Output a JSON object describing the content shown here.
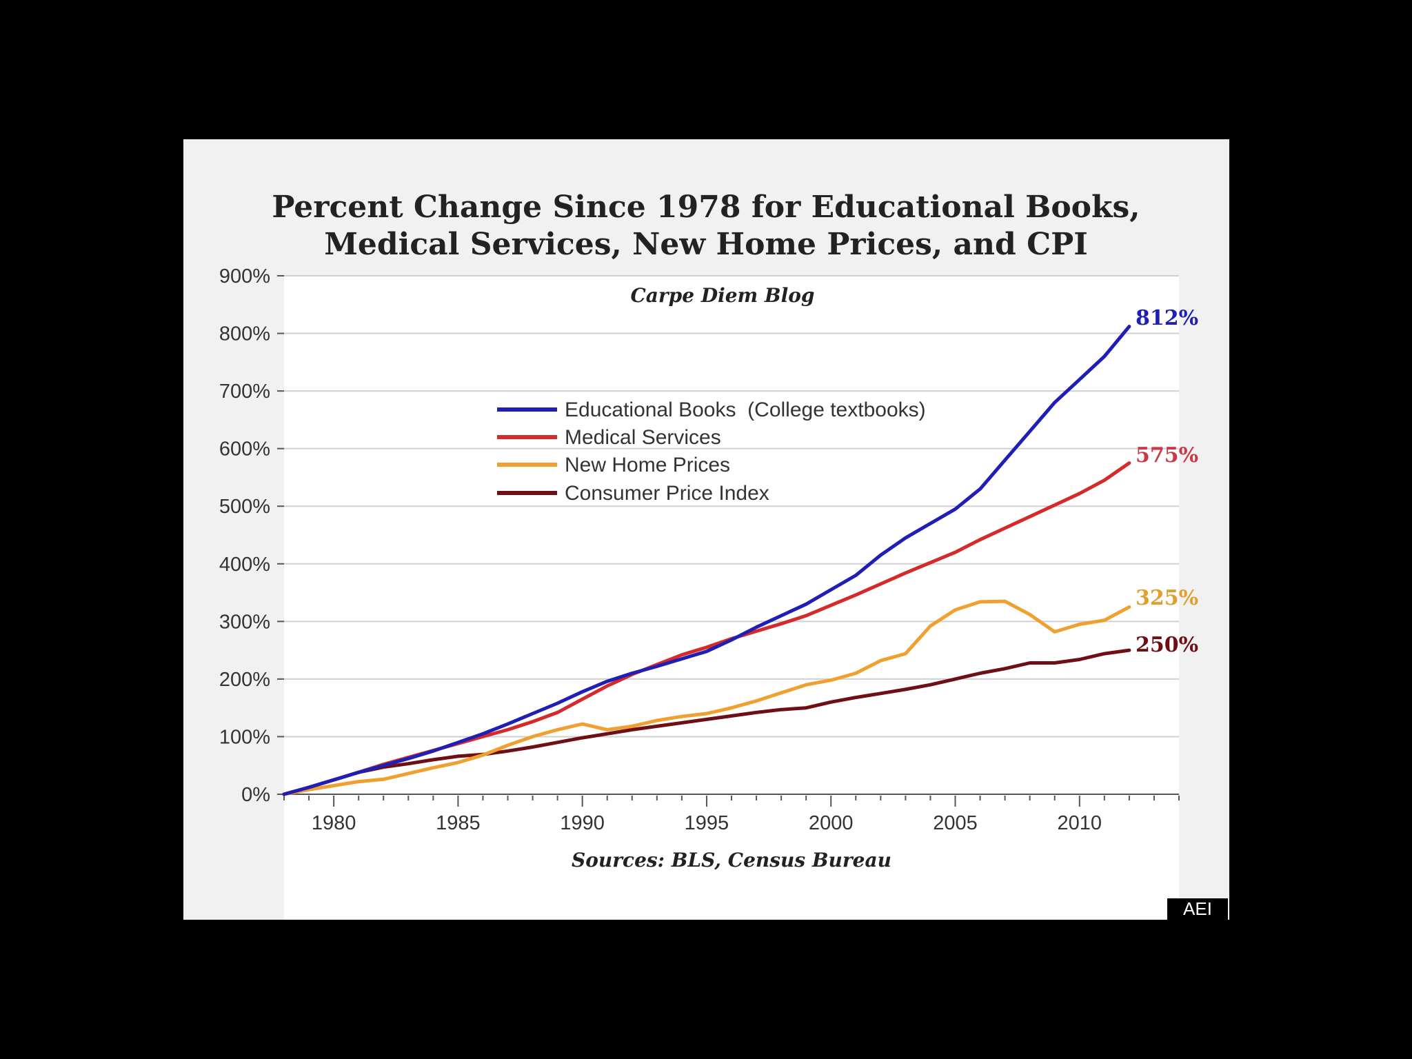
{
  "chart_data": {
    "type": "line",
    "title_lines": [
      "Percent Change Since 1978 for Educational Books,",
      "Medical Services, New Home Prices, and CPI"
    ],
    "subtitle": "Carpe Diem Blog",
    "source": "Sources: BLS, Census Bureau",
    "badge": "AEI",
    "xlim": [
      1978,
      2014
    ],
    "ylim": [
      0,
      900
    ],
    "x_ticks": [
      "1980",
      "1985",
      "1990",
      "1995",
      "2000",
      "2005",
      "2010"
    ],
    "y_ticks": [
      "0%",
      "100%",
      "200%",
      "300%",
      "400%",
      "500%",
      "600%",
      "700%",
      "800%",
      "900%"
    ],
    "grid": true,
    "legend_position": "upper-center",
    "series": [
      {
        "name": "Educational Books  (College textbooks)",
        "color": "#1f1fb5",
        "end_label": "812%",
        "x": [
          1978,
          1979,
          1980,
          1981,
          1982,
          1983,
          1984,
          1985,
          1986,
          1987,
          1988,
          1989,
          1990,
          1991,
          1992,
          1993,
          1994,
          1995,
          1996,
          1997,
          1998,
          1999,
          2000,
          2001,
          2002,
          2003,
          2004,
          2005,
          2006,
          2007,
          2008,
          2009,
          2010,
          2011,
          2012
        ],
        "y": [
          0,
          12,
          25,
          38,
          50,
          62,
          75,
          90,
          105,
          122,
          140,
          158,
          178,
          196,
          210,
          222,
          235,
          248,
          268,
          290,
          310,
          330,
          355,
          380,
          415,
          445,
          470,
          495,
          530,
          580,
          630,
          680,
          720,
          760,
          812
        ]
      },
      {
        "name": "Medical Services",
        "color": "#d42a2a",
        "end_label": "575%",
        "x": [
          1978,
          1979,
          1980,
          1981,
          1982,
          1983,
          1984,
          1985,
          1986,
          1987,
          1988,
          1989,
          1990,
          1991,
          1992,
          1993,
          1994,
          1995,
          1996,
          1997,
          1998,
          1999,
          2000,
          2001,
          2002,
          2003,
          2004,
          2005,
          2006,
          2007,
          2008,
          2009,
          2010,
          2011,
          2012
        ],
        "y": [
          0,
          12,
          25,
          38,
          52,
          64,
          76,
          88,
          100,
          112,
          126,
          142,
          165,
          188,
          208,
          225,
          242,
          255,
          270,
          283,
          296,
          310,
          328,
          346,
          365,
          384,
          402,
          420,
          442,
          462,
          482,
          502,
          522,
          545,
          575
        ]
      },
      {
        "name": "New Home Prices",
        "color": "#f0a030",
        "end_label": "325%",
        "x": [
          1978,
          1979,
          1980,
          1981,
          1982,
          1983,
          1984,
          1985,
          1986,
          1987,
          1988,
          1989,
          1990,
          1991,
          1992,
          1993,
          1994,
          1995,
          1996,
          1997,
          1998,
          1999,
          2000,
          2001,
          2002,
          2003,
          2004,
          2005,
          2006,
          2007,
          2008,
          2009,
          2010,
          2011,
          2012
        ],
        "y": [
          0,
          8,
          15,
          22,
          26,
          36,
          46,
          55,
          68,
          85,
          100,
          112,
          122,
          112,
          118,
          128,
          135,
          140,
          150,
          162,
          176,
          190,
          198,
          210,
          232,
          244,
          292,
          320,
          334,
          335,
          312,
          282,
          295,
          302,
          325
        ]
      },
      {
        "name": "Consumer Price Index",
        "color": "#6e0f16",
        "end_label": "250%",
        "x": [
          1978,
          1979,
          1980,
          1981,
          1982,
          1983,
          1984,
          1985,
          1986,
          1987,
          1988,
          1989,
          1990,
          1991,
          1992,
          1993,
          1994,
          1995,
          1996,
          1997,
          1998,
          1999,
          2000,
          2001,
          2002,
          2003,
          2004,
          2005,
          2006,
          2007,
          2008,
          2009,
          2010,
          2011,
          2012
        ],
        "y": [
          0,
          12,
          25,
          38,
          47,
          53,
          60,
          66,
          69,
          75,
          82,
          90,
          98,
          105,
          112,
          118,
          124,
          130,
          136,
          142,
          147,
          150,
          160,
          168,
          175,
          182,
          190,
          200,
          210,
          218,
          228,
          228,
          234,
          244,
          250
        ]
      }
    ]
  }
}
